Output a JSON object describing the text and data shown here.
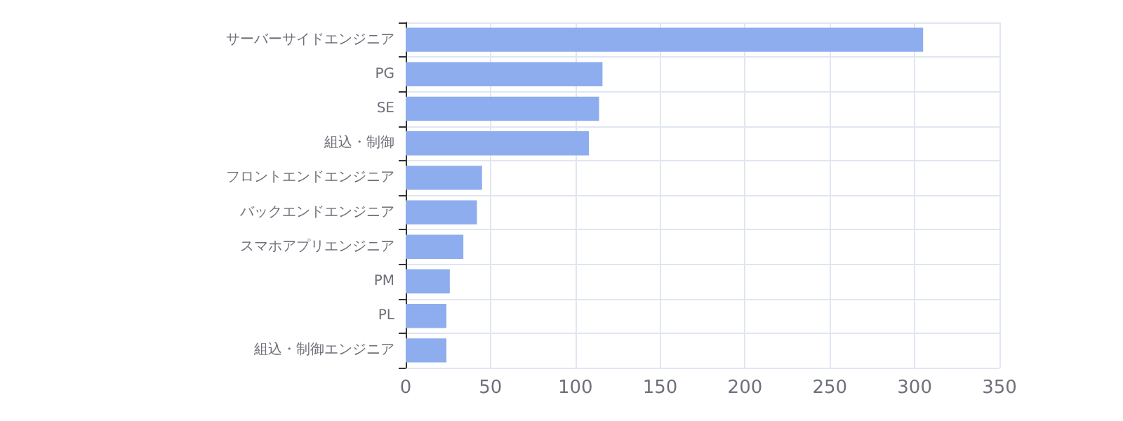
{
  "chart_data": {
    "type": "bar",
    "orientation": "horizontal",
    "categories": [
      "サーバーサイドエンジニア",
      "PG",
      "SE",
      "組込・制御",
      "フロントエンドエンジニア",
      "バックエンドエンジニア",
      "スマホアプリエンジニア",
      "PM",
      "PL",
      "組込・制御エンジニア"
    ],
    "values": [
      305,
      116,
      114,
      108,
      45,
      42,
      34,
      26,
      24,
      24
    ],
    "color": "#8eadef",
    "xlim": [
      0,
      350
    ],
    "xticks": [
      0,
      50,
      100,
      150,
      200,
      250,
      300,
      350
    ],
    "grid": true
  }
}
